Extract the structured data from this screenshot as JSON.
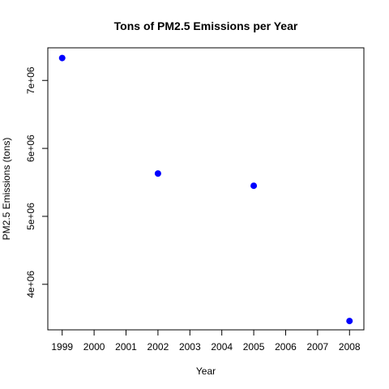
{
  "chart_data": {
    "type": "scatter",
    "title": "Tons of PM2.5 Emissions per Year",
    "xlabel": "Year",
    "ylabel": "PM2.5 Emissions (tons)",
    "x_ticks": [
      "1999",
      "2000",
      "2001",
      "2002",
      "2003",
      "2004",
      "2005",
      "2006",
      "2007",
      "2008"
    ],
    "y_ticks": [
      "4e+06",
      "5e+06",
      "6e+06",
      "7e+06"
    ],
    "xlim": [
      1998.55,
      2008.45
    ],
    "ylim": [
      3330000,
      7480000
    ],
    "grid": false,
    "series": [
      {
        "x": [
          1999,
          2002,
          2005,
          2008
        ],
        "y": [
          7330000,
          5630000,
          5450000,
          3460000
        ]
      }
    ],
    "point_color": "#0000ff"
  }
}
